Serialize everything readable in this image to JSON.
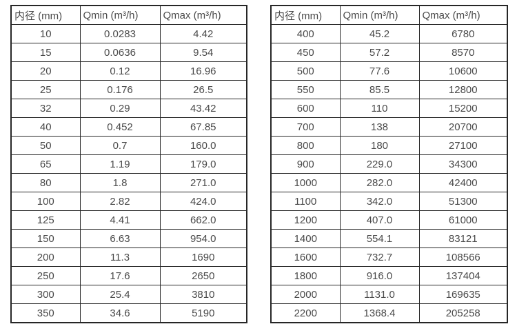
{
  "colors": {
    "background": "#ffffff",
    "grid_border": "#262626",
    "text": "#4a4a4a"
  },
  "chart_data": [
    {
      "type": "table",
      "columns": [
        "内径 (mm)",
        "Qmin (m³/h)",
        "Qmax (m³/h)"
      ],
      "rows": [
        [
          "10",
          "0.0283",
          "4.42"
        ],
        [
          "15",
          "0.0636",
          "9.54"
        ],
        [
          "20",
          "0.12",
          "16.96"
        ],
        [
          "25",
          "0.176",
          "26.5"
        ],
        [
          "32",
          "0.29",
          "43.42"
        ],
        [
          "40",
          "0.452",
          "67.85"
        ],
        [
          "50",
          "0.7",
          "160.0"
        ],
        [
          "65",
          "1.19",
          "179.0"
        ],
        [
          "80",
          "1.8",
          "271.0"
        ],
        [
          "100",
          "2.82",
          "424.0"
        ],
        [
          "125",
          "4.41",
          "662.0"
        ],
        [
          "150",
          "6.63",
          "954.0"
        ],
        [
          "200",
          "11.3",
          "1690"
        ],
        [
          "250",
          "17.6",
          "2650"
        ],
        [
          "300",
          "25.4",
          "3810"
        ],
        [
          "350",
          "34.6",
          "5190"
        ]
      ]
    },
    {
      "type": "table",
      "columns": [
        "内径 (mm)",
        "Qmin (m³/h)",
        "Qmax (m³/h)"
      ],
      "rows": [
        [
          "400",
          "45.2",
          "6780"
        ],
        [
          "450",
          "57.2",
          "8570"
        ],
        [
          "500",
          "77.6",
          "10600"
        ],
        [
          "550",
          "85.5",
          "12800"
        ],
        [
          "600",
          "110",
          "15200"
        ],
        [
          "700",
          "138",
          "20700"
        ],
        [
          "800",
          "180",
          "27100"
        ],
        [
          "900",
          "229.0",
          "34300"
        ],
        [
          "1000",
          "282.0",
          "42400"
        ],
        [
          "1100",
          "342.0",
          "51300"
        ],
        [
          "1200",
          "407.0",
          "61000"
        ],
        [
          "1400",
          "554.1",
          "83121"
        ],
        [
          "1600",
          "732.7",
          "108566"
        ],
        [
          "1800",
          "916.0",
          "137404"
        ],
        [
          "2000",
          "1131.0",
          "169635"
        ],
        [
          "2200",
          "1368.4",
          "205258"
        ]
      ]
    }
  ]
}
